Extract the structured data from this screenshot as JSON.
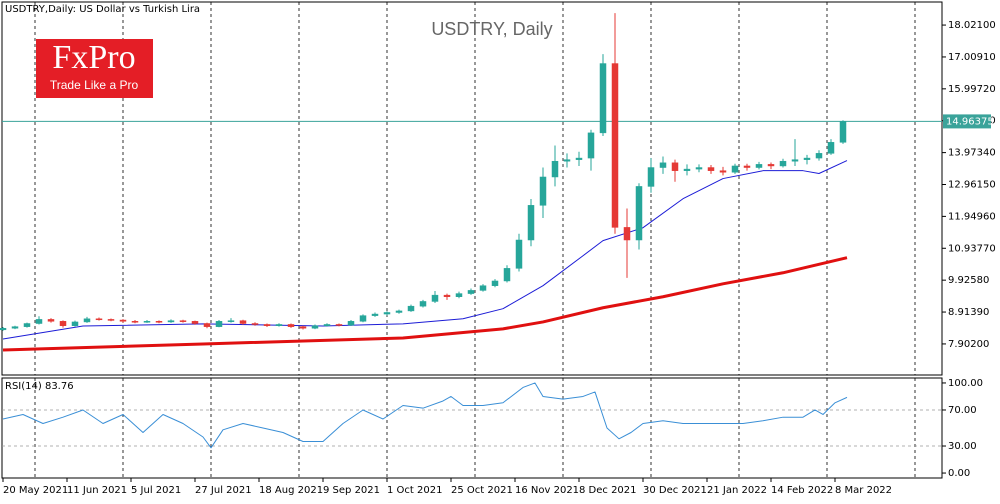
{
  "chart_data": {
    "type": "candlestick",
    "title": "USDTRY,Daily:  US Dollar vs Turkish Lira",
    "watermark": "USDTRY, Daily",
    "logo": {
      "name": "FxPro",
      "tagline": "Trade Like a Pro"
    },
    "xlim": [
      -0.25,
      234.75
    ],
    "xticks": [
      {
        "value": 0,
        "label": "20 May 2021"
      },
      {
        "value": 16,
        "label": "11 Jun 2021"
      },
      {
        "value": 32,
        "label": "5 Jul 2021"
      },
      {
        "value": 48,
        "label": "27 Jul 2021"
      },
      {
        "value": 64,
        "label": "18 Aug 2021"
      },
      {
        "value": 80,
        "label": "9 Sep 2021"
      },
      {
        "value": 96,
        "label": "1 Oct 2021"
      },
      {
        "value": 112,
        "label": "25 Oct 2021"
      },
      {
        "value": 128,
        "label": "16 Nov 2021"
      },
      {
        "value": 144,
        "label": "8 Dec 2021"
      },
      {
        "value": 160,
        "label": "30 Dec 2021"
      },
      {
        "value": 176,
        "label": "21 Jan 2022"
      },
      {
        "value": 192,
        "label": "14 Feb 2022"
      },
      {
        "value": 208,
        "label": "8 Mar 2022"
      }
    ],
    "xgrid": [
      8,
      30,
      52,
      74,
      96,
      118,
      140,
      162,
      184,
      206,
      228
    ],
    "ylim": [
      6.916,
      18.753
    ],
    "yticks": [
      {
        "value": 7.902,
        "label": "7.90200"
      },
      {
        "value": 8.9139,
        "label": "8.91390"
      },
      {
        "value": 9.9258,
        "label": "9.92580"
      },
      {
        "value": 10.9377,
        "label": "10.93770"
      },
      {
        "value": 11.9496,
        "label": "11.94960"
      },
      {
        "value": 12.9615,
        "label": "12.96150"
      },
      {
        "value": 13.9734,
        "label": "13.97340"
      },
      {
        "value": 14.9853,
        "label": "14.98530"
      },
      {
        "value": 15.9972,
        "label": "15.99720"
      },
      {
        "value": 17.0091,
        "label": "17.00910"
      },
      {
        "value": 18.021,
        "label": "18.02100"
      }
    ],
    "current_price": 14.96375,
    "up_color": "#26a69a",
    "down_color": "#e53935",
    "candles": {
      "x": [
        0,
        3,
        6,
        9,
        12,
        15,
        18,
        21,
        24,
        27,
        30,
        33,
        36,
        39,
        42,
        45,
        48,
        51,
        54,
        57,
        60,
        63,
        66,
        69,
        72,
        75,
        78,
        81,
        84,
        87,
        90,
        93,
        96,
        99,
        102,
        105,
        108,
        111,
        114,
        117,
        120,
        123,
        126,
        129,
        132,
        135,
        138,
        141,
        144,
        147,
        150,
        153,
        156,
        159,
        162,
        165,
        168,
        171,
        174,
        177,
        180,
        183,
        186,
        189,
        192,
        195,
        198,
        201,
        204,
        207,
        210
      ],
      "open": [
        8.35,
        8.4,
        8.45,
        8.55,
        8.68,
        8.62,
        8.48,
        8.6,
        8.7,
        8.68,
        8.66,
        8.62,
        8.6,
        8.62,
        8.6,
        8.64,
        8.62,
        8.55,
        8.45,
        8.62,
        8.64,
        8.55,
        8.52,
        8.48,
        8.52,
        8.45,
        8.4,
        8.48,
        8.52,
        8.5,
        8.62,
        8.8,
        8.85,
        8.9,
        8.95,
        9.1,
        9.25,
        9.45,
        9.4,
        9.5,
        9.6,
        9.75,
        9.9,
        10.3,
        11.2,
        12.3,
        13.2,
        13.7,
        13.75,
        13.8,
        14.6,
        16.8,
        11.6,
        11.2,
        12.9,
        13.5,
        13.65,
        13.4,
        13.45,
        13.5,
        13.4,
        13.35,
        13.55,
        13.5,
        13.6,
        13.55,
        13.7,
        13.75,
        13.8,
        13.95,
        14.3
      ],
      "high": [
        8.44,
        8.48,
        8.58,
        8.78,
        8.72,
        8.65,
        8.64,
        8.76,
        8.74,
        8.71,
        8.69,
        8.66,
        8.66,
        8.65,
        8.68,
        8.67,
        8.64,
        8.58,
        8.66,
        8.72,
        8.67,
        8.59,
        8.55,
        8.56,
        8.55,
        8.48,
        8.52,
        8.56,
        8.55,
        8.66,
        8.84,
        8.9,
        8.94,
        8.99,
        9.15,
        9.3,
        9.58,
        9.5,
        9.56,
        9.66,
        9.8,
        9.96,
        10.4,
        11.4,
        12.5,
        13.5,
        14.2,
        13.95,
        14.0,
        14.7,
        17.1,
        18.4,
        12.2,
        13.0,
        13.8,
        13.85,
        13.75,
        13.6,
        13.6,
        13.58,
        13.52,
        13.62,
        13.62,
        13.68,
        13.66,
        13.78,
        14.4,
        13.9,
        14.05,
        14.4,
        15.0
      ],
      "low": [
        8.32,
        8.37,
        8.42,
        8.52,
        8.58,
        8.42,
        8.45,
        8.57,
        8.64,
        8.62,
        8.58,
        8.56,
        8.57,
        8.56,
        8.57,
        8.58,
        8.51,
        8.4,
        8.43,
        8.58,
        8.51,
        8.48,
        8.44,
        8.45,
        8.41,
        8.36,
        8.37,
        8.45,
        8.46,
        8.47,
        8.59,
        8.76,
        8.81,
        8.86,
        8.92,
        9.06,
        9.2,
        9.3,
        9.35,
        9.46,
        9.56,
        9.7,
        9.85,
        10.2,
        11.0,
        11.9,
        12.9,
        13.5,
        13.55,
        13.4,
        14.5,
        11.4,
        10.0,
        10.9,
        12.7,
        13.3,
        13.05,
        13.25,
        13.35,
        13.3,
        13.25,
        13.3,
        13.4,
        13.44,
        13.45,
        13.5,
        13.55,
        13.6,
        13.72,
        13.9,
        14.25
      ],
      "close": [
        8.4,
        8.45,
        8.55,
        8.68,
        8.62,
        8.48,
        8.6,
        8.7,
        8.68,
        8.66,
        8.62,
        8.6,
        8.62,
        8.6,
        8.64,
        8.62,
        8.55,
        8.45,
        8.62,
        8.64,
        8.55,
        8.52,
        8.48,
        8.52,
        8.45,
        8.4,
        8.48,
        8.52,
        8.5,
        8.62,
        8.8,
        8.85,
        8.9,
        8.95,
        9.1,
        9.25,
        9.45,
        9.4,
        9.5,
        9.6,
        9.75,
        9.9,
        10.3,
        11.2,
        12.3,
        13.2,
        13.7,
        13.75,
        13.8,
        14.6,
        16.8,
        11.6,
        11.2,
        12.9,
        13.5,
        13.65,
        13.4,
        13.45,
        13.5,
        13.4,
        13.35,
        13.55,
        13.5,
        13.6,
        13.55,
        13.7,
        13.75,
        13.8,
        13.95,
        14.3,
        14.96
      ]
    },
    "lines": [
      {
        "color": "#1c1cd6",
        "width": 1,
        "x": [
          0,
          20,
          50,
          80,
          100,
          115,
          125,
          135,
          145,
          150,
          160,
          170,
          180,
          190,
          200,
          204,
          211
        ],
        "values": [
          8.06,
          8.47,
          8.54,
          8.47,
          8.54,
          8.7,
          9.02,
          9.75,
          10.7,
          11.18,
          11.59,
          12.51,
          13.15,
          13.4,
          13.4,
          13.31,
          13.72
        ]
      },
      {
        "color": "#e01010",
        "width": 3,
        "x": [
          0,
          50,
          100,
          125,
          135,
          150,
          165,
          180,
          195,
          211
        ],
        "values": [
          7.71,
          7.9,
          8.09,
          8.38,
          8.6,
          9.05,
          9.4,
          9.81,
          10.16,
          10.64
        ]
      }
    ],
    "rsi": {
      "label": "RSI(14) 83.76",
      "color": "#3a8fd6",
      "ylim": [
        -5.5,
        105.5
      ],
      "yticks": [
        {
          "value": 100,
          "label": "100.00"
        },
        {
          "value": 70,
          "label": "70.00"
        },
        {
          "value": 30,
          "label": "30.00"
        },
        {
          "value": 0,
          "label": "0.00"
        }
      ],
      "levels": [
        70,
        30
      ],
      "x": [
        0,
        5,
        10,
        15,
        20,
        25,
        30,
        35,
        40,
        45,
        50,
        52,
        55,
        60,
        65,
        70,
        75,
        80,
        85,
        90,
        95,
        100,
        105,
        110,
        112,
        115,
        120,
        125,
        130,
        133,
        135,
        140,
        145,
        148,
        151,
        154,
        157,
        160,
        165,
        170,
        175,
        180,
        185,
        190,
        195,
        200,
        203,
        205,
        208,
        211
      ],
      "values": [
        60,
        65,
        55,
        62,
        70,
        55,
        65,
        45,
        65,
        55,
        40,
        28,
        48,
        55,
        50,
        45,
        35,
        35,
        55,
        70,
        60,
        75,
        72,
        80,
        85,
        75,
        75,
        78,
        95,
        100,
        85,
        82,
        85,
        90,
        50,
        38,
        45,
        55,
        58,
        55,
        55,
        55,
        55,
        58,
        62,
        62,
        70,
        65,
        78,
        84
      ]
    }
  }
}
